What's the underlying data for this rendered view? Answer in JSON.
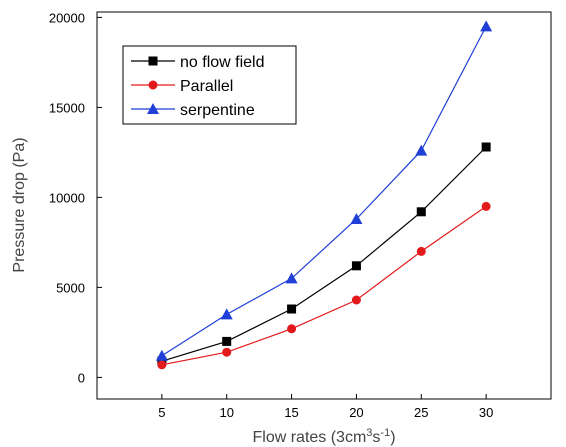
{
  "chart_data": {
    "type": "line",
    "x": [
      5,
      10,
      15,
      20,
      25,
      30
    ],
    "xticks": [
      5,
      10,
      15,
      20,
      25,
      30
    ],
    "yticks": [
      0,
      5000,
      10000,
      15000,
      20000
    ],
    "xlim": [
      0,
      35
    ],
    "ylim": [
      -1200,
      20300
    ],
    "xlabel": "Flow rates (3cm³s⁻¹)",
    "xlabel_parts": {
      "base": "Flow rates (3cm",
      "sup1": "3",
      "mid": "s",
      "sup2": "-1",
      "end": ")"
    },
    "ylabel": "Pressure drop (Pa)",
    "grid": false,
    "legend_position": "top-left",
    "series": [
      {
        "name": "no flow field",
        "color": "#000000",
        "marker": "square",
        "values": [
          900,
          2000,
          3800,
          6200,
          9200,
          12800
        ]
      },
      {
        "name": "Parallel",
        "color": "#e31a1c",
        "marker": "circle",
        "values": [
          700,
          1400,
          2700,
          4300,
          7000,
          9500
        ]
      },
      {
        "name": "serpentine",
        "color": "#1f3fd6",
        "marker": "triangle",
        "values": [
          1200,
          3500,
          5500,
          8800,
          12600,
          19500
        ]
      }
    ]
  }
}
